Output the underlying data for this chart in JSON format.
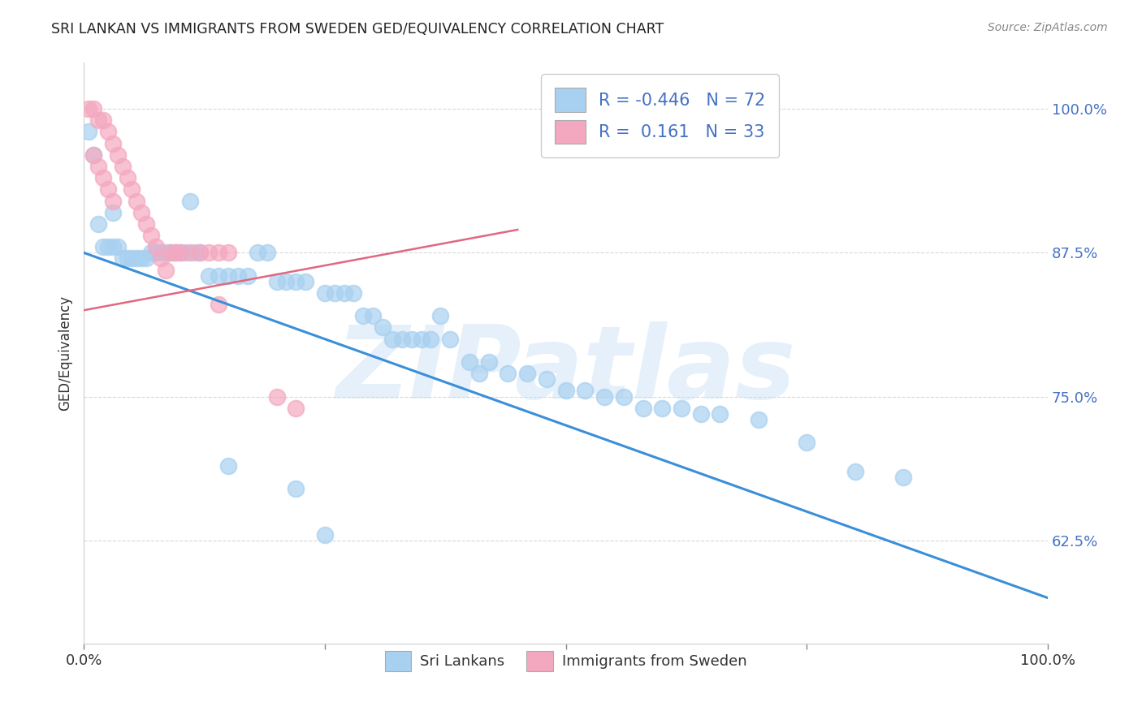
{
  "title": "SRI LANKAN VS IMMIGRANTS FROM SWEDEN GED/EQUIVALENCY CORRELATION CHART",
  "source": "Source: ZipAtlas.com",
  "ylabel": "GED/Equivalency",
  "ytick_vals": [
    0.625,
    0.75,
    0.875,
    1.0
  ],
  "ytick_labels": [
    "62.5%",
    "75.0%",
    "87.5%",
    "100.0%"
  ],
  "xlim": [
    0.0,
    1.0
  ],
  "ylim": [
    0.535,
    1.04
  ],
  "legend_r_blue": "-0.446",
  "legend_n_blue": "72",
  "legend_r_pink": " 0.161",
  "legend_n_pink": "33",
  "blue_scatter_x": [
    0.005,
    0.01,
    0.015,
    0.02,
    0.025,
    0.03,
    0.03,
    0.035,
    0.04,
    0.045,
    0.05,
    0.055,
    0.06,
    0.065,
    0.07,
    0.075,
    0.08,
    0.085,
    0.09,
    0.095,
    0.1,
    0.105,
    0.11,
    0.115,
    0.12,
    0.13,
    0.14,
    0.15,
    0.16,
    0.17,
    0.18,
    0.19,
    0.2,
    0.21,
    0.22,
    0.23,
    0.25,
    0.26,
    0.28,
    0.3,
    0.32,
    0.33,
    0.34,
    0.35,
    0.36,
    0.38,
    0.4,
    0.42,
    0.44,
    0.46,
    0.48,
    0.5,
    0.52,
    0.54,
    0.56,
    0.58,
    0.6,
    0.62,
    0.64,
    0.66,
    0.7,
    0.75,
    0.8,
    0.85,
    0.27,
    0.29,
    0.31,
    0.37,
    0.41,
    0.15,
    0.22,
    0.25
  ],
  "blue_scatter_y": [
    0.98,
    0.96,
    0.9,
    0.88,
    0.88,
    0.91,
    0.88,
    0.88,
    0.87,
    0.87,
    0.87,
    0.87,
    0.87,
    0.87,
    0.875,
    0.875,
    0.875,
    0.875,
    0.875,
    0.875,
    0.875,
    0.875,
    0.92,
    0.875,
    0.875,
    0.855,
    0.855,
    0.855,
    0.855,
    0.855,
    0.875,
    0.875,
    0.85,
    0.85,
    0.85,
    0.85,
    0.84,
    0.84,
    0.84,
    0.82,
    0.8,
    0.8,
    0.8,
    0.8,
    0.8,
    0.8,
    0.78,
    0.78,
    0.77,
    0.77,
    0.765,
    0.755,
    0.755,
    0.75,
    0.75,
    0.74,
    0.74,
    0.74,
    0.735,
    0.735,
    0.73,
    0.71,
    0.685,
    0.68,
    0.84,
    0.82,
    0.81,
    0.82,
    0.77,
    0.69,
    0.67,
    0.63
  ],
  "pink_scatter_x": [
    0.005,
    0.01,
    0.015,
    0.02,
    0.025,
    0.03,
    0.035,
    0.04,
    0.045,
    0.05,
    0.055,
    0.06,
    0.065,
    0.07,
    0.075,
    0.08,
    0.085,
    0.09,
    0.095,
    0.1,
    0.11,
    0.12,
    0.13,
    0.14,
    0.15,
    0.01,
    0.015,
    0.02,
    0.025,
    0.03,
    0.2,
    0.22,
    0.14
  ],
  "pink_scatter_y": [
    1.0,
    1.0,
    0.99,
    0.99,
    0.98,
    0.97,
    0.96,
    0.95,
    0.94,
    0.93,
    0.92,
    0.91,
    0.9,
    0.89,
    0.88,
    0.87,
    0.86,
    0.875,
    0.875,
    0.875,
    0.875,
    0.875,
    0.875,
    0.875,
    0.875,
    0.96,
    0.95,
    0.94,
    0.93,
    0.92,
    0.75,
    0.74,
    0.83
  ],
  "blue_line_x": [
    0.0,
    1.0
  ],
  "blue_line_y": [
    0.875,
    0.575
  ],
  "pink_line_x": [
    0.0,
    0.45
  ],
  "pink_line_y": [
    0.825,
    0.895
  ],
  "blue_scatter_color": "#a8d0f0",
  "pink_scatter_color": "#f4a8c0",
  "blue_line_color": "#3a8fd8",
  "pink_line_color": "#e06880",
  "watermark_text": "ZIPatlas",
  "background_color": "#ffffff",
  "grid_color": "#d8d8d8"
}
